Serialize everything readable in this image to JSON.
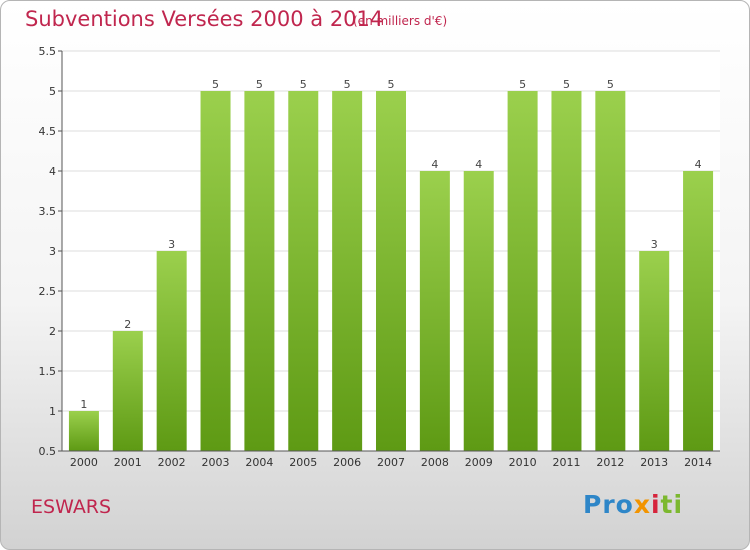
{
  "chart_data": {
    "type": "bar",
    "title": "Subventions Versées 2000 à 2014",
    "subtitle": "(en milliers d'€)",
    "categories": [
      "2000",
      "2001",
      "2002",
      "2003",
      "2004",
      "2005",
      "2006",
      "2007",
      "2008",
      "2009",
      "2010",
      "2011",
      "2012",
      "2013",
      "2014"
    ],
    "values": [
      1,
      2,
      3,
      5,
      5,
      5,
      5,
      5,
      4,
      4,
      5,
      5,
      5,
      3,
      4
    ],
    "ylim": [
      0.5,
      5.5
    ],
    "yticks": [
      "0.5",
      "1",
      "1.5",
      "2",
      "2.5",
      "3",
      "3.5",
      "4",
      "4.5",
      "5",
      "5.5"
    ],
    "grid": true,
    "colors": {
      "bar_top": "#9bd04d",
      "bar_bottom": "#5e9a14",
      "grid": "#dddddd"
    }
  },
  "location": "ESWARS",
  "brand": {
    "parts": [
      "Pro",
      "x",
      "i",
      "ti"
    ]
  }
}
